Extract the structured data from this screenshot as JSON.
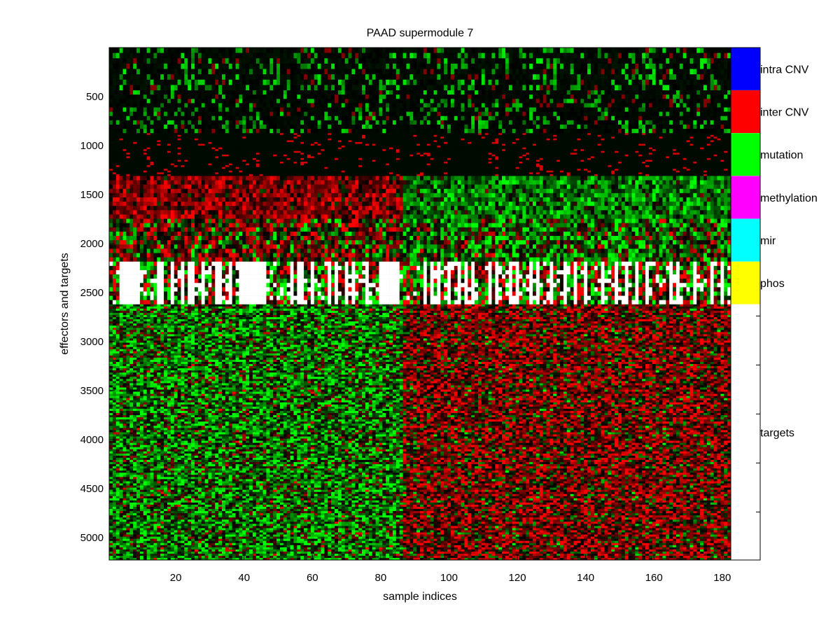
{
  "chart_data": {
    "type": "heatmap",
    "title": "PAAD supermodule 7",
    "xlabel": "sample indices",
    "ylabel": "effectors and targets",
    "xlim": [
      0.5,
      182.5
    ],
    "ylim": [
      1,
      5230
    ],
    "y_reversed": true,
    "grid": false,
    "x_ticks": [
      20,
      40,
      60,
      80,
      100,
      120,
      140,
      160,
      180
    ],
    "x_tick_labels": [
      "20",
      "40",
      "60",
      "80",
      "100",
      "120",
      "140",
      "160",
      "180"
    ],
    "y_ticks": [
      500,
      1000,
      1500,
      2000,
      2500,
      3000,
      3500,
      4000,
      4500,
      5000
    ],
    "y_tick_labels": [
      "500",
      "1000",
      "1500",
      "2000",
      "2500",
      "3000",
      "3500",
      "4000",
      "4500",
      "5000"
    ],
    "colormap": {
      "low": "#00ff00",
      "mid": "#000000",
      "high": "#ff0000",
      "missing": "#ffffff"
    },
    "blocks": [
      {
        "label": "intra CNV",
        "color": "#0000ff",
        "rows": [
          1,
          436
        ]
      },
      {
        "label": "inter CNV",
        "color": "#ff0000",
        "rows": [
          437,
          873
        ]
      },
      {
        "label": "mutation",
        "color": "#00ff00",
        "rows": [
          874,
          1310
        ]
      },
      {
        "label": "methylation",
        "color": "#ff00ff",
        "rows": [
          1311,
          1747
        ]
      },
      {
        "label": "mir",
        "color": "#00ffff",
        "rows": [
          1748,
          2184
        ]
      },
      {
        "label": "phos",
        "color": "#ffff00",
        "rows": [
          2185,
          2620
        ]
      },
      {
        "label": "targets",
        "color": "#ffffff",
        "rows": [
          2621,
          5230
        ]
      }
    ],
    "data_description": "green = down, red = up; effector blocks on top, target rows below; samples 1-86 mostly green in targets, 87-182 mostly red"
  }
}
